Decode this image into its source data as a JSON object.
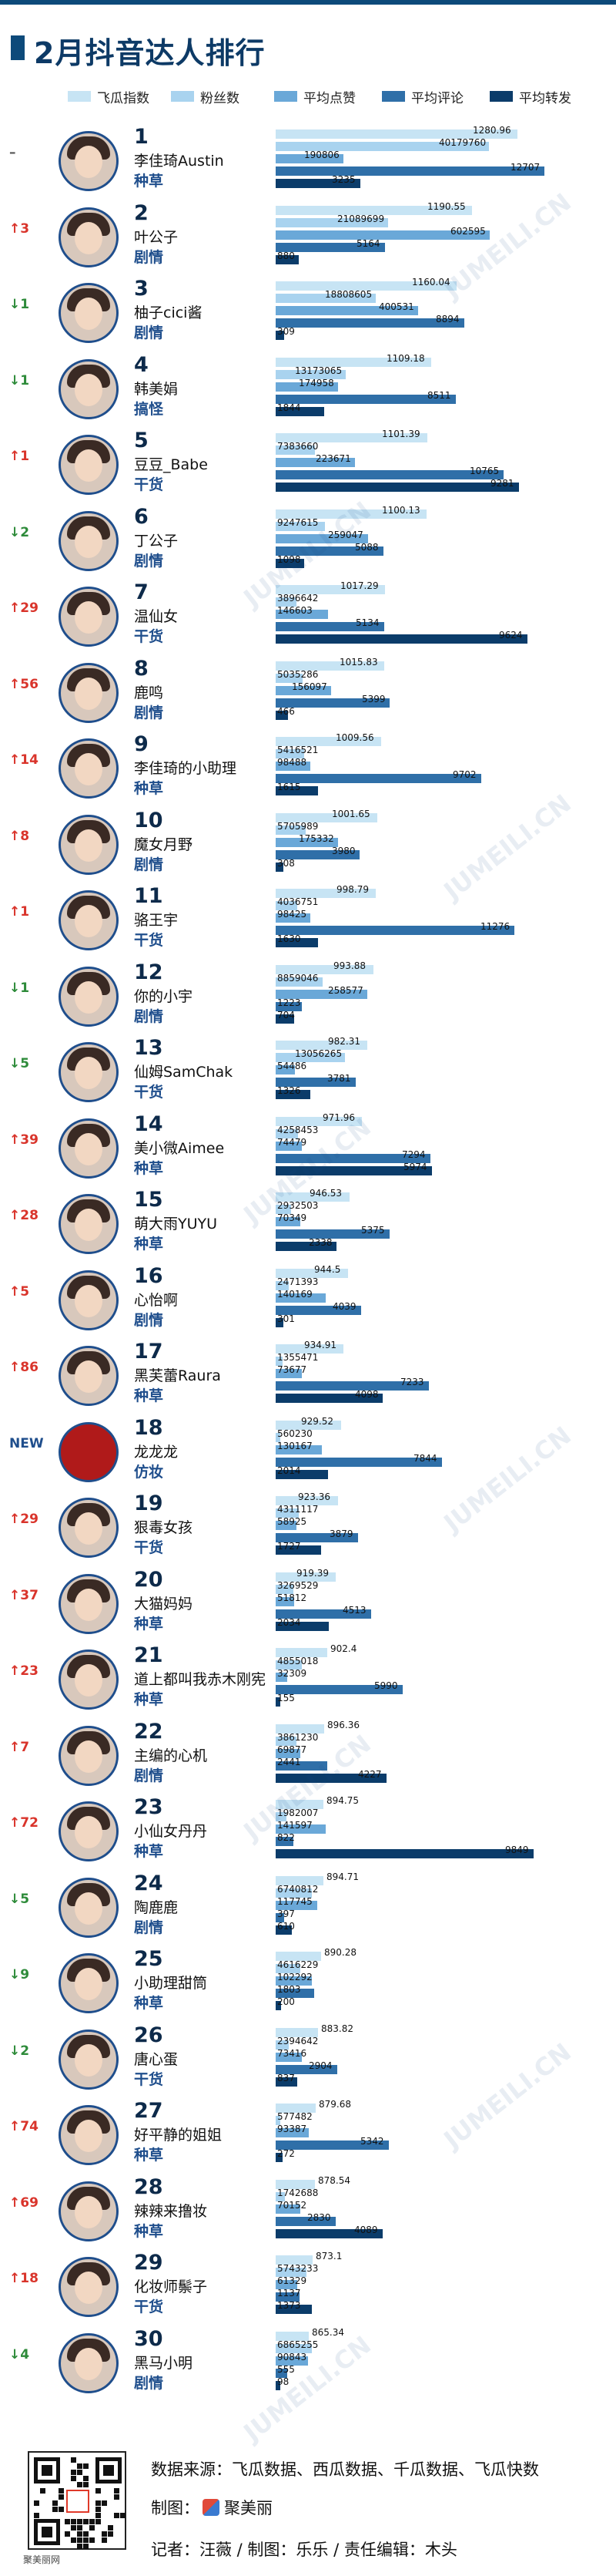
{
  "title": "2月抖音达人排行",
  "watermark_text": "JUMEILI.CN",
  "legend": [
    {
      "label": "飞瓜指数",
      "color": "#c7e4f4"
    },
    {
      "label": "粉丝数",
      "color": "#a9d3ef"
    },
    {
      "label": "平均点赞",
      "color": "#6aa8d8"
    },
    {
      "label": "平均评论",
      "color": "#2f6fa8"
    },
    {
      "label": "平均转发",
      "color": "#0b3c6a"
    }
  ],
  "chart_data": {
    "type": "bar",
    "title": "2月抖音达人排行",
    "series_names": [
      "飞瓜指数",
      "粉丝数",
      "平均点赞",
      "平均评论",
      "平均转发"
    ],
    "rows": [
      {
        "rank": "1",
        "change": "–",
        "dir": "same",
        "name": "李佳琦Austin",
        "category": "种草",
        "values": [
          1280.96,
          40179760,
          190806,
          12707,
          3235
        ]
      },
      {
        "rank": "2",
        "change": "↑3",
        "dir": "up",
        "name": "叶公子",
        "category": "剧情",
        "values": [
          1190.55,
          21089699,
          602595,
          5164,
          880
        ]
      },
      {
        "rank": "3",
        "change": "↓1",
        "dir": "down",
        "name": "柚子cici酱",
        "category": "剧情",
        "values": [
          1160.04,
          18808605,
          400531,
          8894,
          309
        ]
      },
      {
        "rank": "4",
        "change": "↓1",
        "dir": "down",
        "name": "韩美娟",
        "category": "搞怪",
        "values": [
          1109.18,
          13173065,
          174958,
          8511,
          1844
        ]
      },
      {
        "rank": "5",
        "change": "↑1",
        "dir": "up",
        "name": "豆豆_Babe",
        "category": "干货",
        "values": [
          1101.39,
          7383660,
          223671,
          10765,
          9281
        ]
      },
      {
        "rank": "6",
        "change": "↓2",
        "dir": "down",
        "name": "丁公子",
        "category": "剧情",
        "values": [
          1100.13,
          9247615,
          259047,
          5088,
          1098
        ]
      },
      {
        "rank": "7",
        "change": "↑29",
        "dir": "up",
        "name": "温仙女",
        "category": "干货",
        "values": [
          1017.29,
          3896642,
          146603,
          5134,
          9624
        ]
      },
      {
        "rank": "8",
        "change": "↑56",
        "dir": "up",
        "name": "鹿鸣",
        "category": "剧情",
        "values": [
          1015.83,
          5035286,
          156097,
          5399,
          466
        ]
      },
      {
        "rank": "9",
        "change": "↑14",
        "dir": "up",
        "name": "李佳琦的小助理",
        "category": "种草",
        "values": [
          1009.56,
          5416521,
          98488,
          9702,
          1615
        ]
      },
      {
        "rank": "10",
        "change": "↑8",
        "dir": "up",
        "name": "魔女月野",
        "category": "剧情",
        "values": [
          1001.65,
          5705989,
          175332,
          3980,
          308
        ]
      },
      {
        "rank": "11",
        "change": "↑1",
        "dir": "up",
        "name": "骆王宇",
        "category": "干货",
        "values": [
          998.79,
          4036751,
          98425,
          11276,
          1630
        ]
      },
      {
        "rank": "12",
        "change": "↓1",
        "dir": "down",
        "name": "你的小宇",
        "category": "剧情",
        "values": [
          993.88,
          8859046,
          258577,
          1223,
          704
        ]
      },
      {
        "rank": "13",
        "change": "↓5",
        "dir": "down",
        "name": "仙姆SamChak",
        "category": "干货",
        "values": [
          982.31,
          13056265,
          54486,
          3781,
          1326
        ]
      },
      {
        "rank": "14",
        "change": "↑39",
        "dir": "up",
        "name": "美小微Aimee",
        "category": "种草",
        "values": [
          971.96,
          4258453,
          74479,
          7294,
          5974
        ]
      },
      {
        "rank": "15",
        "change": "↑28",
        "dir": "up",
        "name": "萌大雨YUYU",
        "category": "种草",
        "values": [
          946.53,
          2932503,
          70349,
          5375,
          2338
        ]
      },
      {
        "rank": "16",
        "change": "↑5",
        "dir": "up",
        "name": "心怡啊",
        "category": "剧情",
        "values": [
          944.5,
          2471393,
          140169,
          4039,
          301
        ]
      },
      {
        "rank": "17",
        "change": "↑86",
        "dir": "up",
        "name": "黑芙蕾Raura",
        "category": "种草",
        "values": [
          934.91,
          1355471,
          73677,
          7233,
          4098
        ]
      },
      {
        "rank": "18",
        "change": "NEW",
        "dir": "new",
        "name": "龙龙龙",
        "category": "仿妆",
        "values": [
          929.52,
          560230,
          130167,
          7844,
          2014
        ]
      },
      {
        "rank": "19",
        "change": "↑29",
        "dir": "up",
        "name": "狠毒女孩",
        "category": "干货",
        "values": [
          923.36,
          4311117,
          58925,
          3879,
          1727
        ]
      },
      {
        "rank": "20",
        "change": "↑37",
        "dir": "up",
        "name": "大猫妈妈",
        "category": "种草",
        "values": [
          919.39,
          3269529,
          51812,
          4513,
          2034
        ]
      },
      {
        "rank": "21",
        "change": "↑23",
        "dir": "up",
        "name": "道上都叫我赤木刚宪",
        "category": "种草",
        "values": [
          902.4,
          4855018,
          32309,
          5990,
          155
        ]
      },
      {
        "rank": "22",
        "change": "↑7",
        "dir": "up",
        "name": "主编的心机",
        "category": "剧情",
        "values": [
          896.36,
          3861230,
          69877,
          2441,
          4227
        ]
      },
      {
        "rank": "23",
        "change": "↑72",
        "dir": "up",
        "name": "小仙女丹丹",
        "category": "种草",
        "values": [
          894.75,
          1982007,
          141597,
          822,
          9849
        ]
      },
      {
        "rank": "24",
        "change": "↓5",
        "dir": "down",
        "name": "陶鹿鹿",
        "category": "剧情",
        "values": [
          894.71,
          6740812,
          117745,
          397,
          610
        ]
      },
      {
        "rank": "25",
        "change": "↓9",
        "dir": "down",
        "name": "小助理甜筒",
        "category": "种草",
        "values": [
          890.28,
          4616229,
          102292,
          1803,
          200
        ]
      },
      {
        "rank": "26",
        "change": "↓2",
        "dir": "down",
        "name": "唐心蛋",
        "category": "干货",
        "values": [
          883.82,
          2394642,
          73416,
          2904,
          837
        ]
      },
      {
        "rank": "27",
        "change": "↑74",
        "dir": "up",
        "name": "好平静的姐姐",
        "category": "种草",
        "values": [
          879.68,
          577482,
          93387,
          5342,
          272
        ]
      },
      {
        "rank": "28",
        "change": "↑69",
        "dir": "up",
        "name": "辣辣来撸妆",
        "category": "种草",
        "values": [
          878.54,
          1742688,
          70152,
          2830,
          4089
        ]
      },
      {
        "rank": "29",
        "change": "↑18",
        "dir": "up",
        "name": "化妆师鬃子",
        "category": "干货",
        "values": [
          873.1,
          5743233,
          61329,
          1137,
          1373
        ]
      },
      {
        "rank": "30",
        "change": "↓4",
        "dir": "down",
        "name": "黑马小明",
        "category": "剧情",
        "values": [
          865.34,
          6865255,
          90843,
          555,
          98
        ]
      }
    ]
  },
  "footer": {
    "source": "数据来源：飞瓜数据、西瓜数据、千瓜数据、飞瓜快数",
    "maker_prefix": "制图：",
    "maker_brand": "聚美丽",
    "credits": "记者：汪薇 / 制图：乐乐 / 责任编辑：木头",
    "qr_caption": "聚美丽网"
  }
}
